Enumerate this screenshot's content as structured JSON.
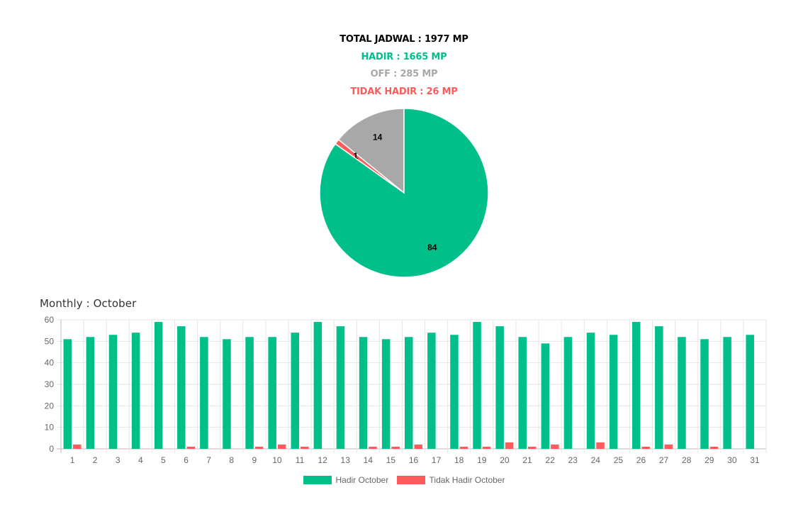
{
  "stats": {
    "total": "TOTAL JADWAL : 1977 MP",
    "hadir": "HADIR : 1665 MP",
    "off": "OFF : 285 MP",
    "tidak_hadir": "TIDAK HADIR : 26 MP"
  },
  "colors": {
    "total": "#000000",
    "hadir": "#00bf8a",
    "off": "#a8a8a8",
    "tidak_hadir": "#fc5c5c"
  },
  "monthly_title": "Monthly : October",
  "chart_data": [
    {
      "type": "pie",
      "slices": [
        {
          "label": "OFF",
          "value": 14,
          "display": "14",
          "color": "#a8a8a8"
        },
        {
          "label": "TIDAK HADIR",
          "value": 1,
          "display": "1",
          "color": "#fc5c5c"
        },
        {
          "label": "HADIR",
          "value": 84,
          "display": "84",
          "color": "#00bf8a"
        }
      ]
    },
    {
      "type": "bar",
      "categories": [
        "1",
        "2",
        "3",
        "4",
        "5",
        "6",
        "7",
        "8",
        "9",
        "10",
        "11",
        "12",
        "13",
        "14",
        "15",
        "16",
        "17",
        "18",
        "19",
        "20",
        "21",
        "22",
        "23",
        "24",
        "25",
        "26",
        "27",
        "28",
        "29",
        "30",
        "31"
      ],
      "series": [
        {
          "name": "Hadir October",
          "color": "#00bf8a",
          "values": [
            51,
            52,
            53,
            54,
            59,
            57,
            52,
            51,
            52,
            52,
            54,
            59,
            57,
            52,
            51,
            52,
            54,
            53,
            59,
            57,
            52,
            49,
            52,
            54,
            53,
            59,
            57,
            52,
            51,
            52,
            53
          ]
        },
        {
          "name": "Tidak Hadir October",
          "color": "#fc5c5c",
          "values": [
            2,
            0,
            0,
            0,
            0,
            1,
            0,
            0,
            1,
            2,
            1,
            0,
            0,
            1,
            1,
            2,
            0,
            1,
            1,
            3,
            1,
            2,
            0,
            3,
            0,
            1,
            2,
            0,
            1,
            0,
            0
          ]
        }
      ],
      "ylim": [
        0,
        60
      ],
      "yticks": [
        0,
        10,
        20,
        30,
        40,
        50,
        60
      ],
      "grid": true,
      "legend": "bottom"
    }
  ]
}
